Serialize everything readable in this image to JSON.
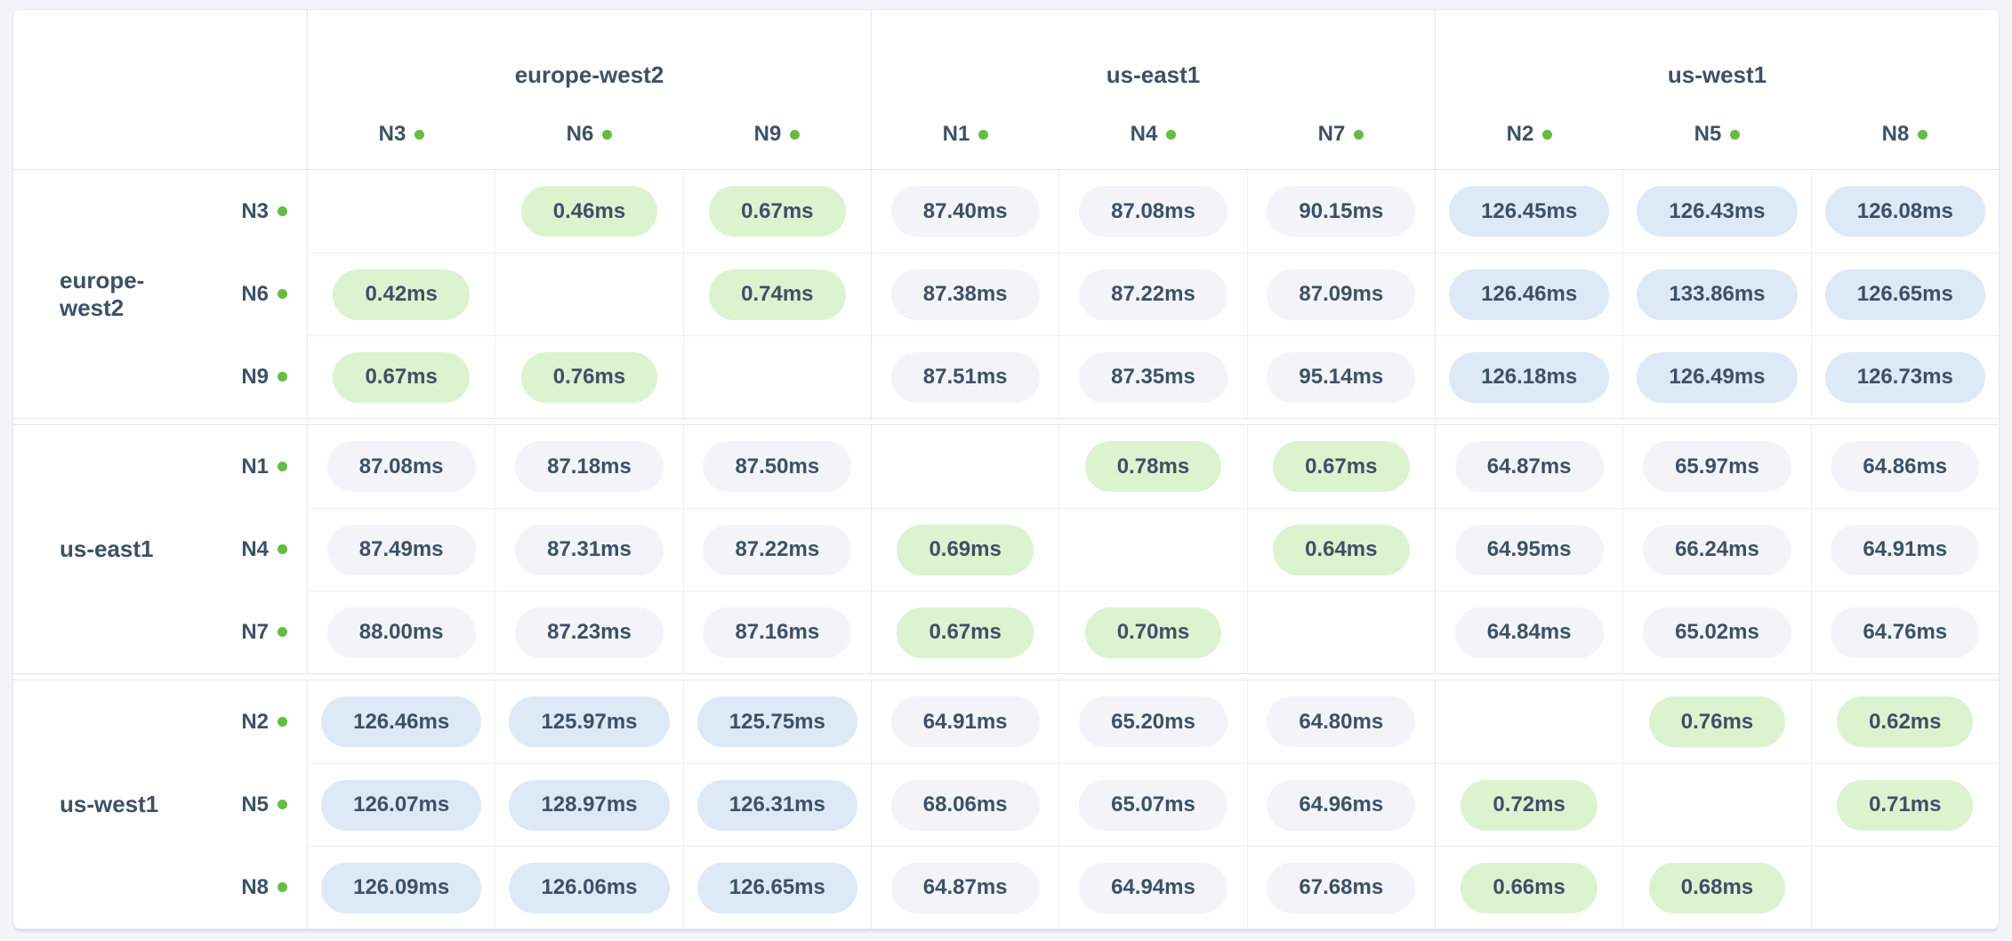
{
  "unit": "ms",
  "colors": {
    "page_bg": "#f3f5f9",
    "grid_line_strong": "#e4e7ef",
    "grid_line_soft": "#eef0f6",
    "label_text": "#3e5066",
    "status_dot_green": "#66bc41",
    "pill_green_bg": "#dcf3d0",
    "pill_neutral_bg": "#f2f4f8",
    "pill_blue_bg": "#dde9f7"
  },
  "matrix": {
    "tone_thresholds": {
      "green_below_ms": 10,
      "blue_at_or_above_ms": 110
    },
    "column_groups": [
      {
        "region": "europe-west2",
        "nodes": [
          "N3",
          "N6",
          "N9"
        ]
      },
      {
        "region": "us-east1",
        "nodes": [
          "N1",
          "N4",
          "N7"
        ]
      },
      {
        "region": "us-west1",
        "nodes": [
          "N2",
          "N5",
          "N8"
        ]
      }
    ],
    "row_groups": [
      {
        "region": "europe-west2",
        "rows": [
          {
            "node": "N3",
            "values": [
              "",
              "0.46ms",
              "0.67ms",
              "87.40ms",
              "87.08ms",
              "90.15ms",
              "126.45ms",
              "126.43ms",
              "126.08ms"
            ]
          },
          {
            "node": "N6",
            "values": [
              "0.42ms",
              "",
              "0.74ms",
              "87.38ms",
              "87.22ms",
              "87.09ms",
              "126.46ms",
              "133.86ms",
              "126.65ms"
            ]
          },
          {
            "node": "N9",
            "values": [
              "0.67ms",
              "0.76ms",
              "",
              "87.51ms",
              "87.35ms",
              "95.14ms",
              "126.18ms",
              "126.49ms",
              "126.73ms"
            ]
          }
        ]
      },
      {
        "region": "us-east1",
        "rows": [
          {
            "node": "N1",
            "values": [
              "87.08ms",
              "87.18ms",
              "87.50ms",
              "",
              "0.78ms",
              "0.67ms",
              "64.87ms",
              "65.97ms",
              "64.86ms"
            ]
          },
          {
            "node": "N4",
            "values": [
              "87.49ms",
              "87.31ms",
              "87.22ms",
              "0.69ms",
              "",
              "0.64ms",
              "64.95ms",
              "66.24ms",
              "64.91ms"
            ]
          },
          {
            "node": "N7",
            "values": [
              "88.00ms",
              "87.23ms",
              "87.16ms",
              "0.67ms",
              "0.70ms",
              "",
              "64.84ms",
              "65.02ms",
              "64.76ms"
            ]
          }
        ]
      },
      {
        "region": "us-west1",
        "rows": [
          {
            "node": "N2",
            "values": [
              "126.46ms",
              "125.97ms",
              "125.75ms",
              "64.91ms",
              "65.20ms",
              "64.80ms",
              "",
              "0.76ms",
              "0.62ms"
            ]
          },
          {
            "node": "N5",
            "values": [
              "126.07ms",
              "128.97ms",
              "126.31ms",
              "68.06ms",
              "65.07ms",
              "64.96ms",
              "0.72ms",
              "",
              "0.71ms"
            ]
          },
          {
            "node": "N8",
            "values": [
              "126.09ms",
              "126.06ms",
              "126.65ms",
              "64.87ms",
              "64.94ms",
              "67.68ms",
              "0.66ms",
              "0.68ms",
              ""
            ]
          }
        ]
      }
    ]
  }
}
